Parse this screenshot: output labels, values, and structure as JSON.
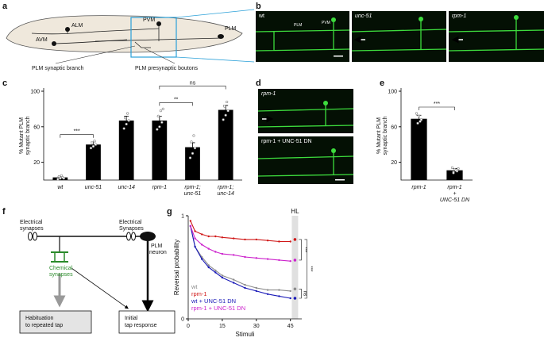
{
  "panel_labels": [
    "a",
    "b",
    "c",
    "d",
    "e",
    "f",
    "g"
  ],
  "diagram_a": {
    "labels": [
      "ALM",
      "AVM",
      "PVM",
      "PLM"
    ],
    "callouts": [
      "PLM synaptic branch",
      "PLM presynaptic boutons"
    ]
  },
  "micrographs_b": {
    "images": [
      "wt",
      "unc-51",
      "rpm-1"
    ],
    "neurons": [
      "PLM",
      "PVM"
    ]
  },
  "micrographs_d": {
    "images": [
      "rpm-1",
      "rpm-1 + UNC-51 DN"
    ]
  },
  "diagram_f": {
    "electrical_left": [
      "Electrical",
      "synapses"
    ],
    "electrical_right": [
      "Electrical",
      "Synapses"
    ],
    "neuron": [
      "PLM",
      "neuron"
    ],
    "chemical": [
      "Chemical",
      "synapses"
    ],
    "habituation": [
      "Habituation",
      "to repeated tap"
    ],
    "initial": [
      "Initial",
      "tap response"
    ]
  },
  "chart_data": [
    {
      "type": "bar",
      "ylabel": [
        "% Mutant PLM",
        "synaptic branch"
      ],
      "categories": [
        "wt",
        "unc-51",
        "unc-14",
        "rpm-1",
        [
          "rpm-1;",
          "unc-51"
        ],
        [
          "rpm-1;",
          "unc-14"
        ]
      ],
      "values": [
        3,
        40,
        67,
        67,
        37,
        79
      ],
      "errors": [
        1,
        3,
        5,
        5,
        5,
        5
      ],
      "points": [
        [
          1,
          2,
          3,
          4,
          5,
          2
        ],
        [
          36,
          38,
          40,
          42,
          44
        ],
        [
          58,
          63,
          67,
          70,
          75
        ],
        [
          57,
          60,
          65,
          72,
          78,
          80
        ],
        [
          25,
          30,
          36,
          43,
          50
        ],
        [
          68,
          73,
          78,
          83,
          88
        ]
      ],
      "color": "#000000",
      "ylim": [
        0,
        100
      ],
      "yticks": [
        20,
        60,
        100
      ],
      "annotations": [
        "***",
        "**",
        "ns"
      ]
    },
    {
      "type": "bar",
      "ylabel": [
        "% Mutant PLM",
        "synaptic branch"
      ],
      "categories": [
        "rpm-1",
        [
          "rpm-1",
          "+",
          "UNC-51 DN"
        ]
      ],
      "values": [
        69,
        11
      ],
      "errors": [
        4,
        2
      ],
      "points": [
        [
          75,
          72,
          68,
          64,
          66
        ],
        [
          14,
          12,
          10,
          9,
          11,
          13,
          8
        ]
      ],
      "color": "#000000",
      "ylim": [
        0,
        100
      ],
      "yticks": [
        20,
        60,
        100
      ],
      "annotations": [
        "***"
      ]
    },
    {
      "type": "line",
      "xlabel": "Stimuli",
      "ylabel": "Reversal probability",
      "x": [
        1,
        3,
        6,
        9,
        12,
        15,
        20,
        25,
        30,
        35,
        40,
        45
      ],
      "xlim": [
        0,
        50
      ],
      "xticks": [
        0,
        15,
        30,
        45
      ],
      "ylim": [
        0,
        1
      ],
      "yticks": [
        0,
        1
      ],
      "hl_label": "HL",
      "hl_x": 47,
      "legend": "lower left",
      "series": [
        {
          "name": "wt",
          "color": "#8c8c8c",
          "values": [
            0.9,
            0.7,
            0.6,
            0.52,
            0.47,
            0.42,
            0.38,
            0.33,
            0.3,
            0.28,
            0.28,
            0.27
          ],
          "hl_value": 0.29
        },
        {
          "name": "rpm-1",
          "color": "#d01818",
          "values": [
            0.95,
            0.85,
            0.82,
            0.8,
            0.8,
            0.79,
            0.78,
            0.77,
            0.77,
            0.76,
            0.75,
            0.75
          ],
          "hl_value": 0.77
        },
        {
          "name": "wt + UNC-51 DN",
          "color": "#1a1ab8",
          "values": [
            0.9,
            0.7,
            0.58,
            0.5,
            0.45,
            0.4,
            0.35,
            0.3,
            0.27,
            0.24,
            0.22,
            0.2
          ],
          "hl_value": 0.2
        },
        {
          "name": "rpm-1 + UNC-51 DN",
          "color": "#cc22cc",
          "values": [
            0.9,
            0.78,
            0.72,
            0.68,
            0.65,
            0.63,
            0.62,
            0.6,
            0.59,
            0.58,
            0.57,
            0.56
          ],
          "hl_value": 0.57
        }
      ],
      "annotations": [
        "***",
        "***",
        "ns"
      ]
    }
  ]
}
